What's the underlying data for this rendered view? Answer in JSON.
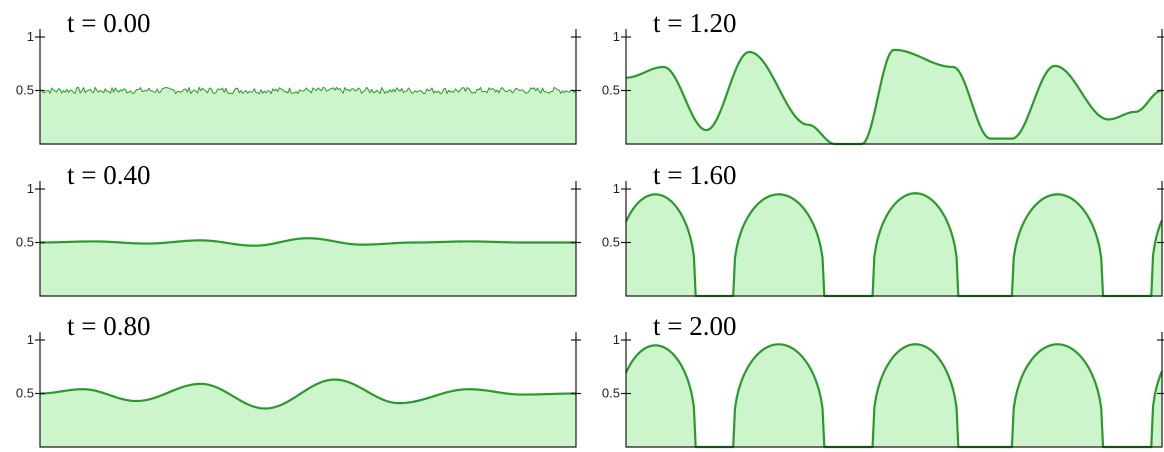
{
  "chart_data": [
    {
      "type": "area",
      "title": "t = 0.00",
      "ylim": [
        0,
        1
      ],
      "yticks": [
        {
          "value": 1,
          "label": "1"
        },
        {
          "value": 0.5,
          "label": "0.5"
        }
      ],
      "profile": {
        "kind": "noise",
        "base": 0.5,
        "amplitude": 0.03
      },
      "fill_color": "#ccf5cc",
      "line_color": "#2b9a2b"
    },
    {
      "type": "area",
      "title": "t = 0.40",
      "ylim": [
        0,
        1
      ],
      "yticks": [
        {
          "value": 1,
          "label": "1"
        },
        {
          "value": 0.5,
          "label": "0.5"
        }
      ],
      "profile": {
        "kind": "points",
        "x": [
          0,
          0.1,
          0.2,
          0.3,
          0.4,
          0.5,
          0.6,
          0.7,
          0.8,
          0.9,
          1.0
        ],
        "y": [
          0.5,
          0.51,
          0.49,
          0.52,
          0.47,
          0.54,
          0.48,
          0.5,
          0.51,
          0.5,
          0.5
        ]
      },
      "fill_color": "#ccf5cc",
      "line_color": "#2b9a2b"
    },
    {
      "type": "area",
      "title": "t = 0.80",
      "ylim": [
        0,
        1
      ],
      "yticks": [
        {
          "value": 1,
          "label": "1"
        },
        {
          "value": 0.5,
          "label": "0.5"
        }
      ],
      "profile": {
        "kind": "points",
        "x": [
          0,
          0.08,
          0.18,
          0.3,
          0.42,
          0.55,
          0.67,
          0.8,
          0.9,
          1.0
        ],
        "y": [
          0.5,
          0.54,
          0.43,
          0.59,
          0.36,
          0.63,
          0.41,
          0.54,
          0.49,
          0.5
        ]
      },
      "fill_color": "#ccf5cc",
      "line_color": "#2b9a2b"
    },
    {
      "type": "area",
      "title": "t = 1.20",
      "ylim": [
        0,
        1
      ],
      "yticks": [
        {
          "value": 1,
          "label": "1"
        },
        {
          "value": 0.5,
          "label": "0.5"
        }
      ],
      "profile": {
        "kind": "points",
        "x": [
          0,
          0.07,
          0.15,
          0.23,
          0.34,
          0.39,
          0.44,
          0.5,
          0.61,
          0.68,
          0.72,
          0.8,
          0.9,
          0.95,
          1.0
        ],
        "y": [
          0.62,
          0.72,
          0.13,
          0.86,
          0.18,
          0.0,
          0.0,
          0.88,
          0.72,
          0.05,
          0.05,
          0.73,
          0.23,
          0.3,
          0.5
        ]
      },
      "fill_color": "#ccf5cc",
      "line_color": "#2b9a2b"
    },
    {
      "type": "area",
      "title": "t = 1.60",
      "ylim": [
        0,
        1
      ],
      "yticks": [
        {
          "value": 1,
          "label": "1"
        },
        {
          "value": 0.5,
          "label": "0.5"
        }
      ],
      "profile": {
        "kind": "bumps",
        "gap_level": 0.0,
        "bumps": [
          {
            "start": -0.02,
            "end": 0.13,
            "peak": 0.95
          },
          {
            "start": 0.2,
            "end": 0.37,
            "peak": 0.95
          },
          {
            "start": 0.46,
            "end": 0.62,
            "peak": 0.96
          },
          {
            "start": 0.72,
            "end": 0.89,
            "peak": 0.95
          },
          {
            "start": 0.98,
            "end": 1.12,
            "peak": 0.95
          }
        ]
      },
      "fill_color": "#ccf5cc",
      "line_color": "#2b9a2b"
    },
    {
      "type": "area",
      "title": "t = 2.00",
      "ylim": [
        0,
        1
      ],
      "yticks": [
        {
          "value": 1,
          "label": "1"
        },
        {
          "value": 0.5,
          "label": "0.5"
        }
      ],
      "profile": {
        "kind": "bumps",
        "gap_level": 0.0,
        "bumps": [
          {
            "start": -0.02,
            "end": 0.13,
            "peak": 0.95
          },
          {
            "start": 0.2,
            "end": 0.37,
            "peak": 0.96
          },
          {
            "start": 0.46,
            "end": 0.62,
            "peak": 0.96
          },
          {
            "start": 0.72,
            "end": 0.89,
            "peak": 0.96
          },
          {
            "start": 0.98,
            "end": 1.12,
            "peak": 0.95
          }
        ]
      },
      "fill_color": "#ccf5cc",
      "line_color": "#2b9a2b"
    }
  ]
}
